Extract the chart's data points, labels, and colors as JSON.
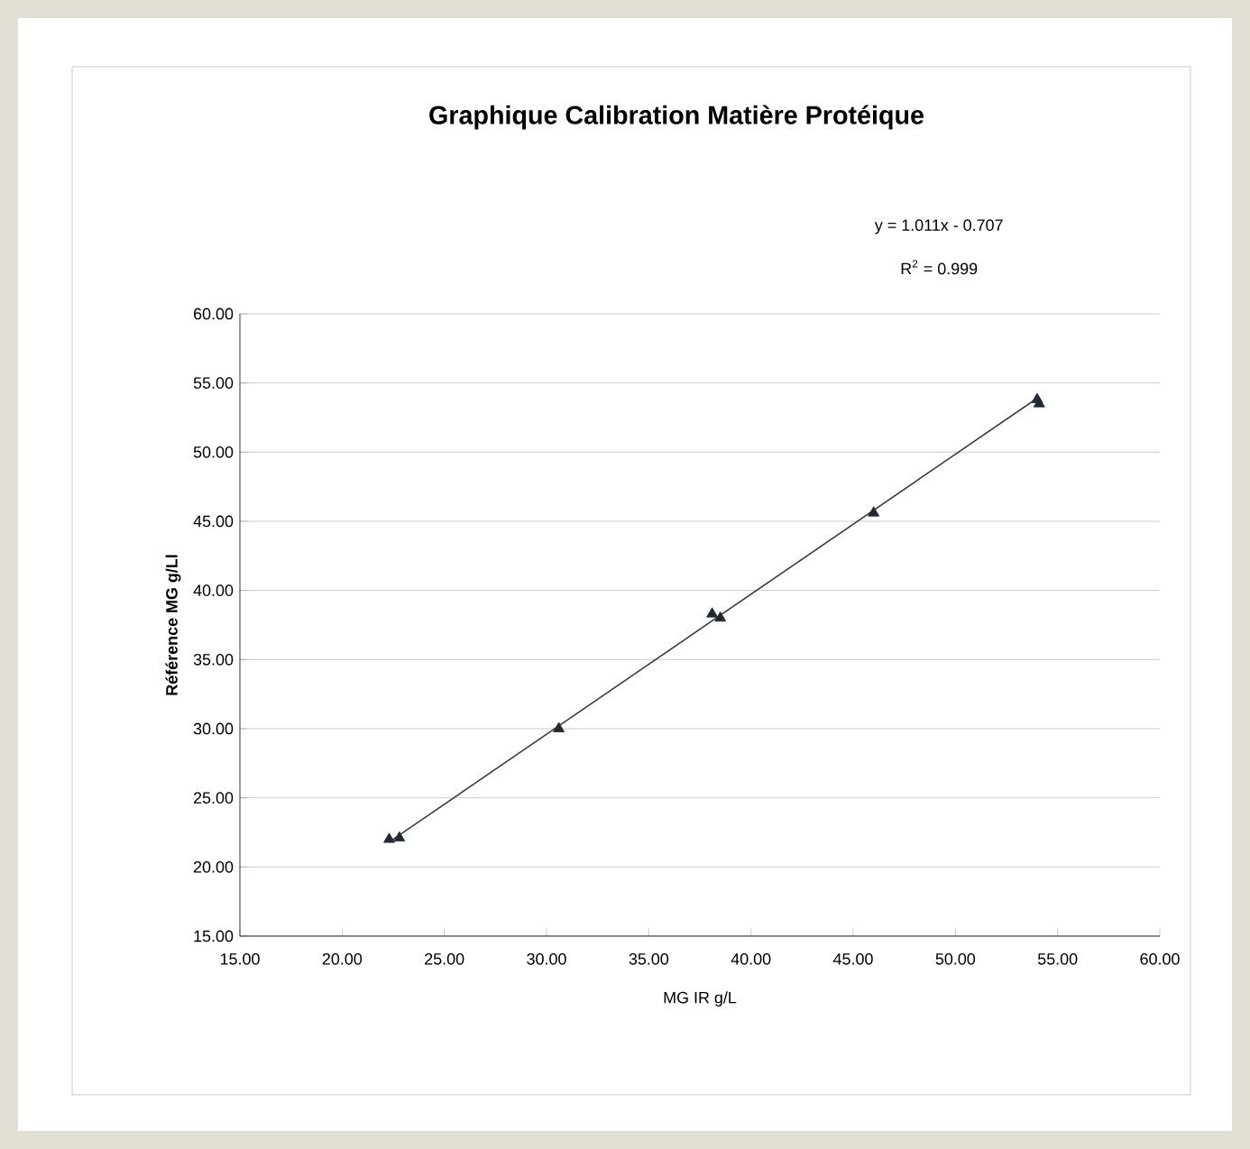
{
  "chart_data": {
    "type": "scatter",
    "title": "Graphique Calibration Matière Protéique",
    "xlabel": "MG IR g/L",
    "ylabel": "Référence MG  g/Ll",
    "annotations": [
      "y = 1.011x - 0.707",
      "R$^{2}$ = 0.999"
    ],
    "series": [
      {
        "color": "#1f2a30",
        "marker": "triangle",
        "x": [
          22.3,
          22.8,
          30.6,
          38.1,
          38.5,
          46.0,
          54.0,
          54.1
        ],
        "values": [
          22.0,
          22.1,
          30.0,
          38.3,
          38.0,
          45.6,
          53.8,
          53.5
        ]
      },
      {
        "type": "line",
        "color": "#404040",
        "marker": "none",
        "line_style": "solid",
        "x": [
          22.3,
          54.1
        ],
        "values": [
          21.8,
          54.0
        ]
      }
    ],
    "xlim": [
      15,
      60
    ],
    "ylim": [
      15,
      60
    ],
    "xticks": [
      {
        "value": 15,
        "label": "15.00"
      },
      {
        "value": 20,
        "label": "20.00"
      },
      {
        "value": 25,
        "label": "25.00"
      },
      {
        "value": 30,
        "label": "30.00"
      },
      {
        "value": 35,
        "label": "35.00"
      },
      {
        "value": 40,
        "label": "40.00"
      },
      {
        "value": 45,
        "label": "45.00"
      },
      {
        "value": 50,
        "label": "50.00"
      },
      {
        "value": 55,
        "label": "55.00"
      },
      {
        "value": 60,
        "label": "60.00"
      }
    ],
    "yticks": [
      {
        "value": 15,
        "label": "15.00"
      },
      {
        "value": 20,
        "label": "20.00"
      },
      {
        "value": 25,
        "label": "25.00"
      },
      {
        "value": 30,
        "label": "30.00"
      },
      {
        "value": 35,
        "label": "35.00"
      },
      {
        "value": 40,
        "label": "40.00"
      },
      {
        "value": 45,
        "label": "45.00"
      },
      {
        "value": 50,
        "label": "50.00"
      },
      {
        "value": 55,
        "label": "55.00"
      },
      {
        "value": 60,
        "label": "60.00"
      }
    ],
    "grid": "y"
  }
}
